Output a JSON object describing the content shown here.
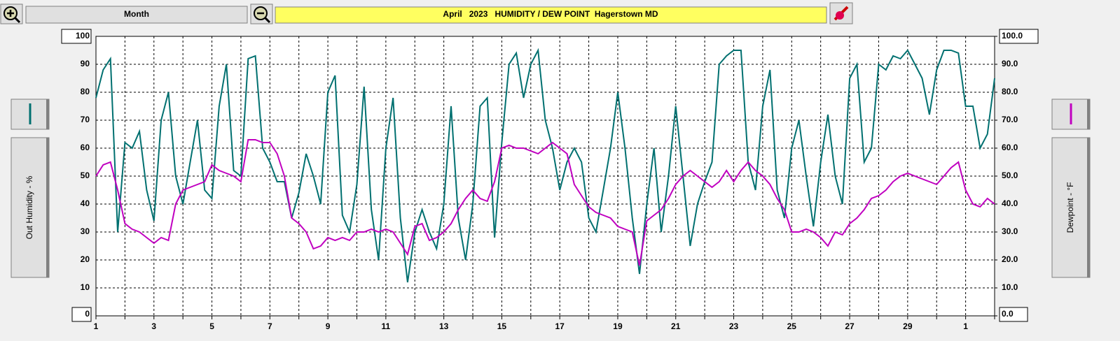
{
  "toolbar": {
    "period_button": "Month"
  },
  "chart_data": {
    "type": "line",
    "title": "April   2023   HUMIDITY / DEW POINT  Hagerstown MD",
    "y_label": "Out Humidity - %",
    "y2_label": "Dewpoint - °F",
    "x": [
      0,
      0.25,
      0.5,
      0.75,
      1,
      1.25,
      1.5,
      1.75,
      2,
      2.25,
      2.5,
      2.75,
      3,
      3.25,
      3.5,
      3.75,
      4,
      4.25,
      4.5,
      4.75,
      5,
      5.25,
      5.5,
      5.75,
      6,
      6.25,
      6.5,
      6.75,
      7,
      7.25,
      7.5,
      7.75,
      8,
      8.25,
      8.5,
      8.75,
      9,
      9.25,
      9.5,
      9.75,
      10,
      10.25,
      10.5,
      10.75,
      11,
      11.25,
      11.5,
      11.75,
      12,
      12.25,
      12.5,
      12.75,
      13,
      13.25,
      13.5,
      13.75,
      14,
      14.25,
      14.5,
      14.75,
      15,
      15.25,
      15.5,
      15.75,
      16,
      16.25,
      16.5,
      16.75,
      17,
      17.25,
      17.5,
      17.75,
      18,
      18.25,
      18.5,
      18.75,
      19,
      19.25,
      19.5,
      19.75,
      20,
      20.25,
      20.5,
      20.75,
      21,
      21.25,
      21.5,
      21.75,
      22,
      22.25,
      22.5,
      22.75,
      23,
      23.25,
      23.5,
      23.75,
      24,
      24.25,
      24.5,
      24.75,
      25,
      25.25,
      25.5,
      25.75,
      26,
      26.25,
      26.5,
      26.75,
      27,
      27.25,
      27.5,
      27.75,
      28,
      28.25,
      28.5,
      28.75,
      29,
      29.25,
      29.5,
      29.75,
      30,
      30.25,
      30.5,
      30.75,
      31
    ],
    "series": [
      {
        "color": "#007070",
        "values": [
          78,
          88,
          92,
          30,
          62,
          60,
          66,
          45,
          34,
          70,
          80,
          50,
          40,
          55,
          70,
          45,
          42,
          75,
          90,
          52,
          50,
          92,
          93,
          60,
          55,
          48,
          48,
          35,
          44,
          58,
          50,
          40,
          80,
          86,
          36,
          30,
          47,
          82,
          38,
          20,
          60,
          78,
          35,
          12,
          30,
          38,
          30,
          24,
          40,
          75,
          35,
          20,
          40,
          75,
          78,
          28,
          62,
          90,
          94,
          78,
          90,
          95,
          70,
          60,
          45,
          55,
          60,
          55,
          35,
          30,
          45,
          60,
          80,
          60,
          35,
          15,
          40,
          60,
          30,
          50,
          75,
          50,
          25,
          40,
          48,
          55,
          90,
          93,
          95,
          95,
          55,
          45,
          75,
          88,
          45,
          35,
          60,
          70,
          50,
          32,
          55,
          72,
          50,
          40,
          85,
          90,
          55,
          60,
          90,
          88,
          93,
          92,
          95,
          90,
          85,
          72,
          88,
          95,
          95,
          94,
          75,
          75,
          60,
          65,
          85
        ]
      },
      {
        "color": "#c000c0",
        "axis": "y2",
        "values": [
          50,
          54,
          55,
          45,
          33,
          31,
          30,
          28,
          26,
          28,
          27,
          40,
          45,
          46,
          47,
          48,
          54,
          52,
          51,
          50,
          48,
          63,
          63,
          62,
          62,
          58,
          50,
          35,
          33,
          30,
          24,
          25,
          28,
          27,
          28,
          27,
          30,
          30,
          31,
          30,
          31,
          30,
          26,
          22,
          32,
          33,
          27,
          28,
          30,
          33,
          38,
          42,
          45,
          42,
          41,
          48,
          60,
          61,
          60,
          60,
          59,
          58,
          60,
          62,
          60,
          58,
          47,
          43,
          39,
          37,
          36,
          35,
          32,
          31,
          30,
          18,
          34,
          36,
          38,
          42,
          47,
          50,
          52,
          50,
          48,
          46,
          48,
          52,
          48,
          52,
          55,
          52,
          50,
          47,
          42,
          38,
          30,
          30,
          31,
          30,
          28,
          25,
          30,
          29,
          33,
          35,
          38,
          42,
          43,
          45,
          48,
          50,
          51,
          50,
          49,
          48,
          47,
          50,
          53,
          55,
          45,
          40,
          39,
          42,
          40
        ]
      }
    ],
    "xlim": [
      0,
      31
    ],
    "xticks": [
      {
        "value": 0,
        "label": "1"
      },
      {
        "value": 2,
        "label": "3"
      },
      {
        "value": 4,
        "label": "5"
      },
      {
        "value": 6,
        "label": "7"
      },
      {
        "value": 8,
        "label": "9"
      },
      {
        "value": 10,
        "label": "11"
      },
      {
        "value": 12,
        "label": "13"
      },
      {
        "value": 14,
        "label": "15"
      },
      {
        "value": 16,
        "label": "17"
      },
      {
        "value": 18,
        "label": "19"
      },
      {
        "value": 20,
        "label": "21"
      },
      {
        "value": 22,
        "label": "23"
      },
      {
        "value": 24,
        "label": "25"
      },
      {
        "value": 26,
        "label": "27"
      },
      {
        "value": 28,
        "label": "29"
      },
      {
        "value": 30,
        "label": "1"
      }
    ],
    "xgrid": [
      0,
      1,
      2,
      3,
      4,
      5,
      6,
      7,
      8,
      9,
      10,
      11,
      12,
      13,
      14,
      15,
      16,
      17,
      18,
      19,
      20,
      21,
      22,
      23,
      24,
      25,
      26,
      27,
      28,
      29,
      30,
      31
    ],
    "ylim": [
      0,
      100
    ],
    "yticks": [
      0,
      10,
      20,
      30,
      40,
      50,
      60,
      70,
      80,
      90,
      100
    ],
    "y2lim": [
      0,
      100
    ],
    "y2ticks": [
      {
        "value": 0,
        "label": "0.0"
      },
      {
        "value": 10,
        "label": "10.0"
      },
      {
        "value": 20,
        "label": "20.0"
      },
      {
        "value": 30,
        "label": "30.0"
      },
      {
        "value": 40,
        "label": "40.0"
      },
      {
        "value": 50,
        "label": "50.0"
      },
      {
        "value": 60,
        "label": "60.0"
      },
      {
        "value": 70,
        "label": "70.0"
      },
      {
        "value": 80,
        "label": "80.0"
      },
      {
        "value": 90,
        "label": "90.0"
      },
      {
        "value": 100,
        "label": "100.0"
      }
    ],
    "grid": true
  }
}
